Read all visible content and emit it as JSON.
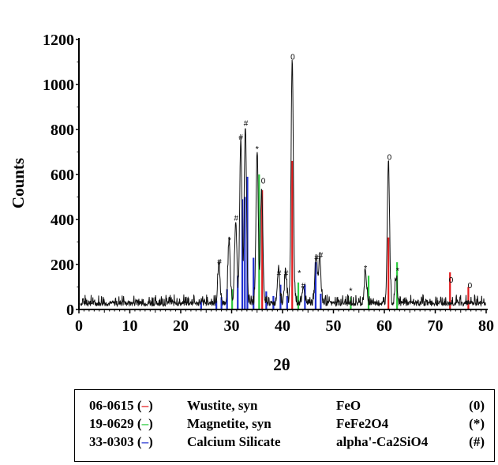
{
  "chart_data": {
    "type": "line",
    "title": "",
    "xlabel": "2θ",
    "ylabel": "Counts",
    "xlim": [
      0,
      80
    ],
    "ylim": [
      0,
      1200
    ],
    "xticks": [
      0,
      10,
      20,
      30,
      40,
      50,
      60,
      70,
      80
    ],
    "yticks": [
      0,
      200,
      400,
      600,
      800,
      1000,
      1200
    ],
    "grid": false,
    "pattern_peaks": [
      {
        "x": 27.5,
        "y": 180
      },
      {
        "x": 29.5,
        "y": 290
      },
      {
        "x": 30.8,
        "y": 370
      },
      {
        "x": 31.8,
        "y": 730
      },
      {
        "x": 32.7,
        "y": 790
      },
      {
        "x": 35.0,
        "y": 670
      },
      {
        "x": 35.9,
        "y": 510
      },
      {
        "x": 39.2,
        "y": 160
      },
      {
        "x": 40.6,
        "y": 140
      },
      {
        "x": 41.9,
        "y": 1090
      },
      {
        "x": 44.1,
        "y": 80
      },
      {
        "x": 46.6,
        "y": 215
      },
      {
        "x": 47.3,
        "y": 210
      },
      {
        "x": 56.3,
        "y": 140
      },
      {
        "x": 60.8,
        "y": 640
      },
      {
        "x": 62.3,
        "y": 110
      }
    ],
    "reference_series": [
      {
        "code": "06-0615",
        "name": "Wustite, syn",
        "formula": "FeO",
        "symbol": "(0)",
        "color": "#e41a1c",
        "marker": "o",
        "sticks": [
          {
            "x": 36.0,
            "y": 530
          },
          {
            "x": 41.9,
            "y": 660
          },
          {
            "x": 60.8,
            "y": 320
          },
          {
            "x": 72.9,
            "y": 165
          },
          {
            "x": 76.5,
            "y": 100
          }
        ]
      },
      {
        "code": "19-0629",
        "name": "Magnetite, syn",
        "formula": "FeFe2O4",
        "symbol": "(*)",
        "color": "#2ecc40",
        "marker": "*",
        "sticks": [
          {
            "x": 30.1,
            "y": 90
          },
          {
            "x": 35.4,
            "y": 600
          },
          {
            "x": 43.1,
            "y": 120
          },
          {
            "x": 53.4,
            "y": 55
          },
          {
            "x": 56.9,
            "y": 150
          },
          {
            "x": 62.5,
            "y": 210
          }
        ]
      },
      {
        "code": "33-0303",
        "name": "Calcium Silicate",
        "formula": "alpha'-Ca2SiO4",
        "symbol": "(#)",
        "color": "#1f2fd0",
        "marker": "#",
        "sticks": [
          {
            "x": 24.0,
            "y": 40
          },
          {
            "x": 27.0,
            "y": 40
          },
          {
            "x": 28.0,
            "y": 55
          },
          {
            "x": 29.1,
            "y": 90
          },
          {
            "x": 31.2,
            "y": 150
          },
          {
            "x": 32.1,
            "y": 490
          },
          {
            "x": 32.6,
            "y": 500
          },
          {
            "x": 33.1,
            "y": 590
          },
          {
            "x": 34.3,
            "y": 230
          },
          {
            "x": 36.8,
            "y": 80
          },
          {
            "x": 38.2,
            "y": 60
          },
          {
            "x": 39.6,
            "y": 110
          },
          {
            "x": 40.9,
            "y": 60
          },
          {
            "x": 44.4,
            "y": 110
          },
          {
            "x": 46.5,
            "y": 210
          },
          {
            "x": 47.5,
            "y": 70
          }
        ]
      }
    ],
    "peak_markers": [
      {
        "text": "0",
        "x": 42.0,
        "y": 1110
      },
      {
        "text": "0",
        "x": 36.2,
        "y": 560
      },
      {
        "text": "0",
        "x": 61.0,
        "y": 665
      },
      {
        "text": "0",
        "x": 73.1,
        "y": 120
      },
      {
        "text": "0",
        "x": 76.8,
        "y": 95
      },
      {
        "text": "*",
        "x": 35.0,
        "y": 700
      },
      {
        "text": "*",
        "x": 29.6,
        "y": 295
      },
      {
        "text": "*",
        "x": 43.3,
        "y": 150
      },
      {
        "text": "*",
        "x": 53.4,
        "y": 70
      },
      {
        "text": "*",
        "x": 56.3,
        "y": 170
      },
      {
        "text": "*",
        "x": 62.6,
        "y": 160
      },
      {
        "text": "#",
        "x": 32.8,
        "y": 815
      },
      {
        "text": "#",
        "x": 31.8,
        "y": 755
      },
      {
        "text": "#",
        "x": 30.9,
        "y": 395
      },
      {
        "text": "#",
        "x": 27.6,
        "y": 200
      },
      {
        "text": "#",
        "x": 39.3,
        "y": 150
      },
      {
        "text": "#",
        "x": 40.7,
        "y": 150
      },
      {
        "text": "#",
        "x": 44.1,
        "y": 95
      },
      {
        "text": "#",
        "x": 46.7,
        "y": 220
      },
      {
        "text": "#",
        "x": 47.5,
        "y": 230
      }
    ]
  }
}
